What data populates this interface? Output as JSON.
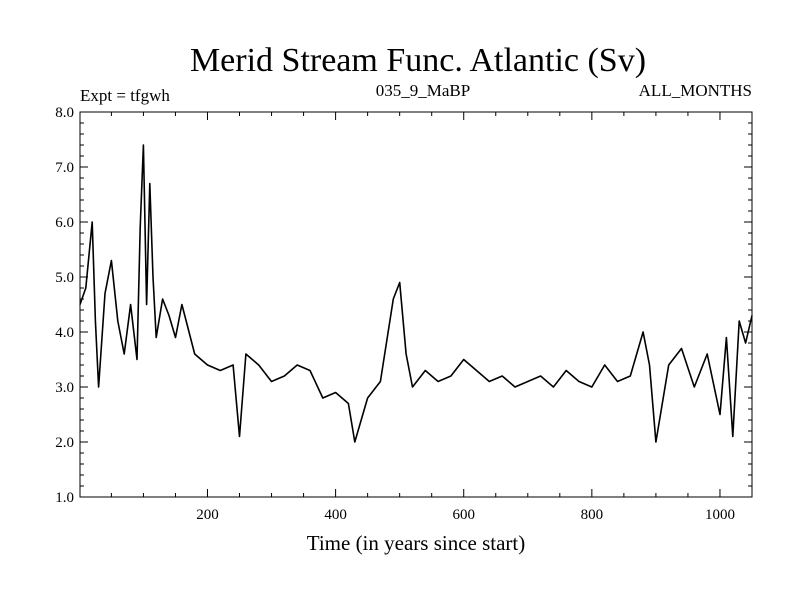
{
  "chart_data": {
    "type": "line",
    "title": "Merid Stream Func. Atlantic (Sv)",
    "subtitle_left": "Expt = tfgwh",
    "subtitle_center": "035_9_MaBP",
    "subtitle_right": "ALL_MONTHS",
    "xlabel": "Time (in years since start)",
    "ylabel": "",
    "xlim": [
      1,
      1050
    ],
    "ylim": [
      1.0,
      8.0
    ],
    "xticks": [
      200,
      400,
      600,
      800,
      1000
    ],
    "yticks": [
      "1.0",
      "2.0",
      "3.0",
      "4.0",
      "5.0",
      "6.0",
      "7.0",
      "8.0"
    ],
    "grid": false,
    "series": [
      {
        "name": "Merid Stream Func. Atlantic",
        "color": "#000000",
        "x": [
          1,
          10,
          20,
          25,
          30,
          40,
          50,
          60,
          70,
          80,
          90,
          95,
          100,
          105,
          110,
          115,
          120,
          130,
          140,
          150,
          160,
          180,
          200,
          220,
          240,
          250,
          260,
          280,
          300,
          320,
          340,
          360,
          380,
          400,
          420,
          430,
          450,
          470,
          490,
          500,
          510,
          520,
          540,
          560,
          580,
          600,
          620,
          640,
          660,
          680,
          700,
          720,
          740,
          760,
          780,
          800,
          820,
          840,
          860,
          880,
          890,
          900,
          920,
          940,
          960,
          980,
          1000,
          1010,
          1020,
          1030,
          1040,
          1050
        ],
        "values": [
          4.5,
          4.8,
          6.0,
          4.2,
          3.0,
          4.7,
          5.3,
          4.2,
          3.6,
          4.5,
          3.5,
          5.9,
          7.4,
          4.5,
          6.7,
          5.0,
          3.9,
          4.6,
          4.3,
          3.9,
          4.5,
          3.6,
          3.4,
          3.3,
          3.4,
          2.1,
          3.6,
          3.4,
          3.1,
          3.2,
          3.4,
          3.3,
          2.8,
          2.9,
          2.7,
          2.0,
          2.8,
          3.1,
          4.6,
          4.9,
          3.6,
          3.0,
          3.3,
          3.1,
          3.2,
          3.5,
          3.3,
          3.1,
          3.2,
          3.0,
          3.1,
          3.2,
          3.0,
          3.3,
          3.1,
          3.0,
          3.4,
          3.1,
          3.2,
          4.0,
          3.4,
          2.0,
          3.4,
          3.7,
          3.0,
          3.6,
          2.5,
          3.9,
          2.1,
          4.2,
          3.8,
          4.3
        ]
      }
    ]
  }
}
